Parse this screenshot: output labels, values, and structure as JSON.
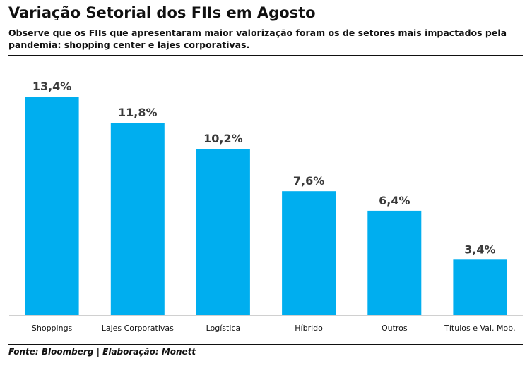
{
  "header": {
    "title": "Variação Setorial dos FIIs em Agosto",
    "subtitle": "Observe que os FIIs que apresentaram maior valorização foram os de setores mais impactados pela pandemia: shopping center e lajes corporativas."
  },
  "footer": {
    "source": "Fonte: Bloomberg | Elaboração: Monett"
  },
  "colors": {
    "bar": "#00aeef",
    "text": "#111111",
    "value_label": "#3a3a3a"
  },
  "chart_data": {
    "type": "bar",
    "categories": [
      "Shoppings",
      "Lajes Corporativas",
      "Logística",
      "Híbrido",
      "Outros",
      "Títulos e Val. Mob."
    ],
    "values": [
      13.4,
      11.8,
      10.2,
      7.6,
      6.4,
      3.4
    ],
    "value_labels": [
      "13,4%",
      "11,8%",
      "10,2%",
      "7,6%",
      "6,4%",
      "3,4%"
    ],
    "title": "Variação Setorial dos FIIs em Agosto",
    "xlabel": "",
    "ylabel": "",
    "ylim": [
      0,
      13.4
    ],
    "grid": false,
    "legend": "none"
  }
}
